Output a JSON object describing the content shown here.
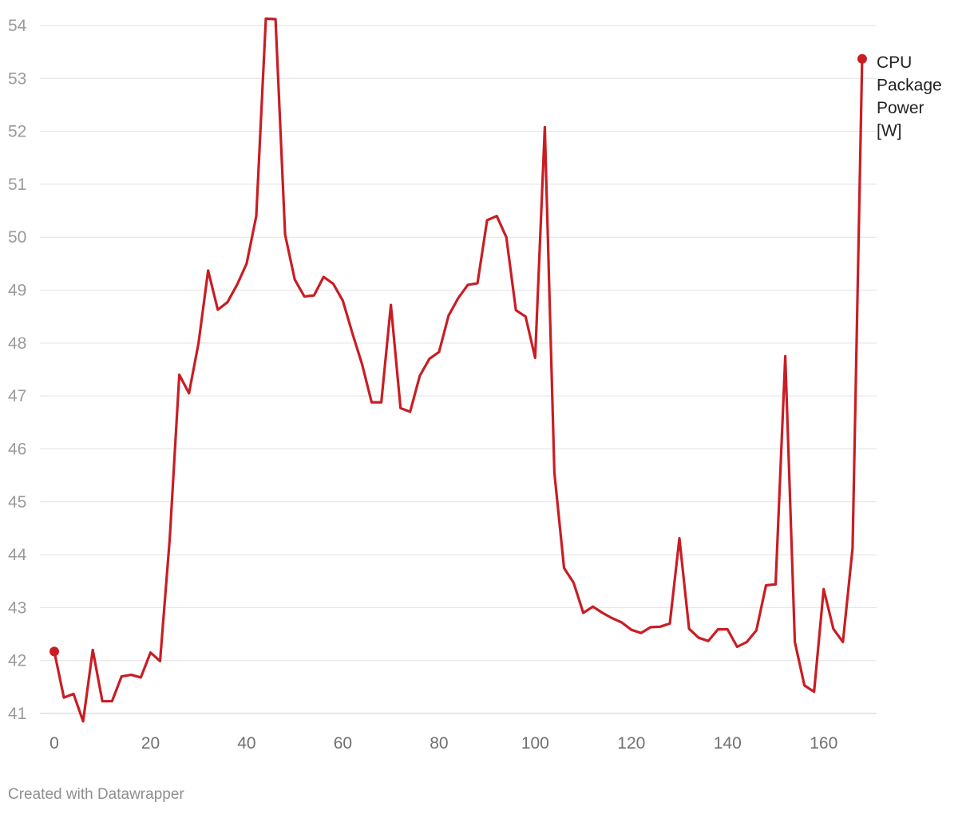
{
  "chart_data": {
    "type": "line",
    "series": [
      {
        "name": "CPU Package Power [W]",
        "color": "#c91d24",
        "x": [
          0,
          2,
          4,
          6,
          8,
          10,
          12,
          14,
          16,
          18,
          20,
          22,
          24,
          26,
          28,
          30,
          32,
          34,
          36,
          38,
          40,
          42,
          44,
          46,
          48,
          50,
          52,
          54,
          56,
          58,
          60,
          62,
          64,
          66,
          68,
          70,
          72,
          74,
          76,
          78,
          80,
          82,
          84,
          86,
          88,
          90,
          92,
          94,
          96,
          98,
          100,
          102,
          104,
          106,
          108,
          110,
          112,
          114,
          116,
          118,
          120,
          122,
          124,
          126,
          128,
          130,
          132,
          134,
          136,
          138,
          140,
          142,
          144,
          146,
          148,
          150,
          152,
          154,
          156,
          158,
          160,
          162,
          164,
          166,
          168
        ],
        "values": [
          42.17,
          41.3,
          41.37,
          40.85,
          42.2,
          41.23,
          41.23,
          41.7,
          41.73,
          41.68,
          42.15,
          41.99,
          44.3,
          47.4,
          47.05,
          48.0,
          49.37,
          48.63,
          48.77,
          49.1,
          49.5,
          50.4,
          54.13,
          54.12,
          50.05,
          49.2,
          48.88,
          48.9,
          49.25,
          49.12,
          48.8,
          48.18,
          47.6,
          46.88,
          46.88,
          48.72,
          46.77,
          46.7,
          47.38,
          47.7,
          47.83,
          48.52,
          48.85,
          49.1,
          49.13,
          50.32,
          50.4,
          50.0,
          48.62,
          48.5,
          47.72,
          52.08,
          45.55,
          43.75,
          43.47,
          42.9,
          43.02,
          42.9,
          42.8,
          42.72,
          42.58,
          42.52,
          42.63,
          42.64,
          42.7,
          44.31,
          42.6,
          42.43,
          42.37,
          42.59,
          42.59,
          42.26,
          42.35,
          42.57,
          43.42,
          43.44,
          47.75,
          42.35,
          41.53,
          41.41,
          43.35,
          42.6,
          42.35,
          44.12,
          53.37
        ]
      }
    ],
    "xlim": [
      0,
      170
    ],
    "ylim": [
      40.8,
      54.4
    ],
    "x_ticks": [
      "0",
      "20",
      "40",
      "60",
      "80",
      "100",
      "120",
      "140",
      "160"
    ],
    "y_ticks": [
      "41",
      "42",
      "43",
      "44",
      "45",
      "46",
      "47",
      "48",
      "49",
      "50",
      "51",
      "52",
      "53",
      "54"
    ],
    "series_label_lines": [
      "CPU",
      "Package",
      "Power",
      "[W]"
    ],
    "grid": true,
    "legend": "direct label at line end"
  },
  "footer": {
    "credit": "Created with Datawrapper"
  }
}
